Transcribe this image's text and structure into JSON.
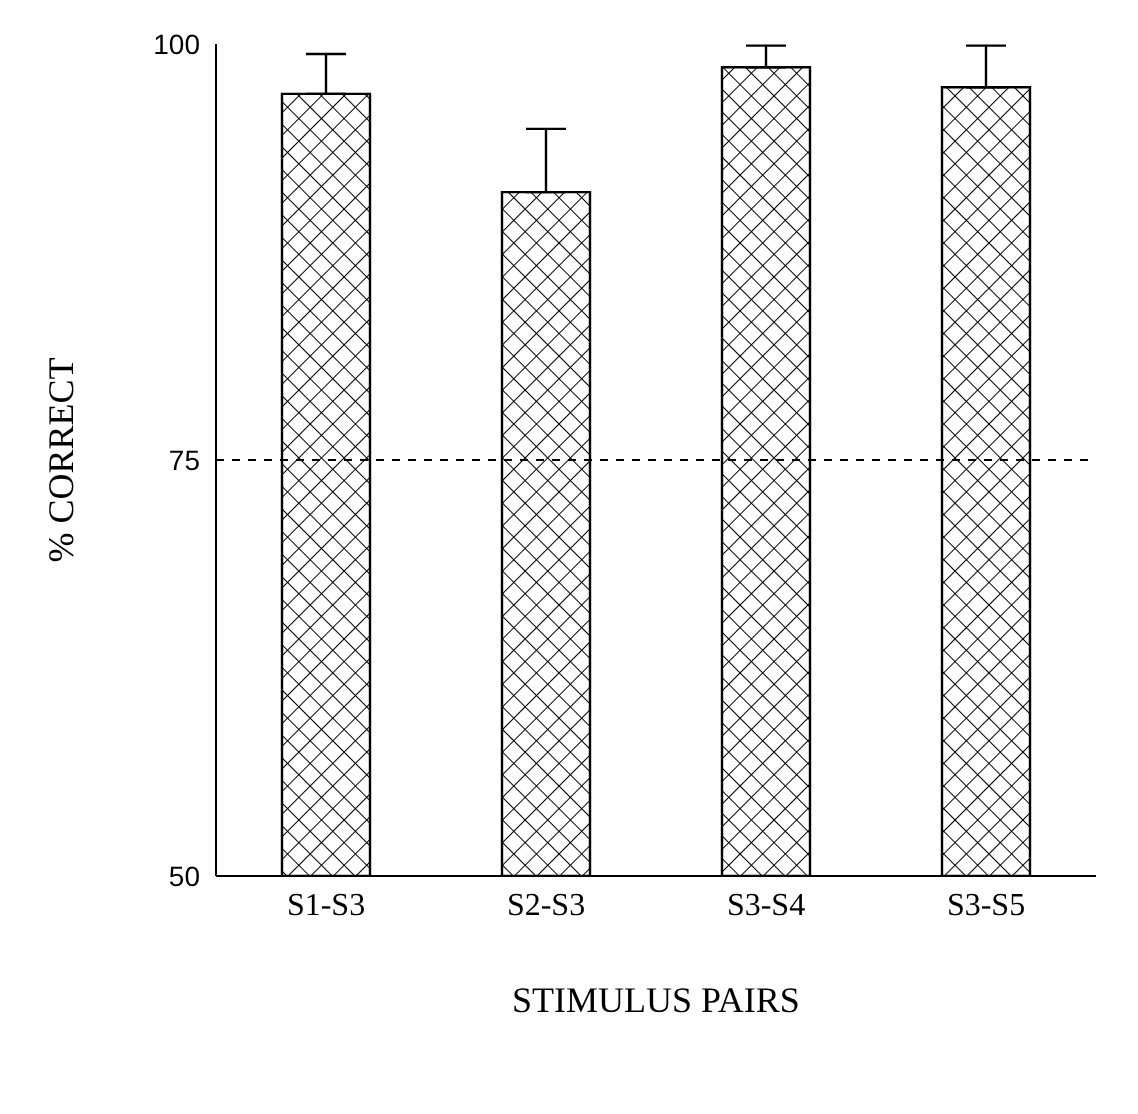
{
  "chart_data": {
    "type": "bar",
    "xlabel": "STIMULUS PAIRS",
    "ylabel": "% CORRECT",
    "categories": [
      "S1-S3",
      "S2-S3",
      "S3-S4",
      "S3-S5"
    ],
    "values": [
      97.0,
      91.1,
      98.6,
      97.4
    ],
    "errors": [
      [
        97.0,
        99.4
      ],
      [
        91.1,
        94.9
      ],
      [
        98.6,
        99.9
      ],
      [
        97.4,
        99.9
      ]
    ],
    "color": "#000000",
    "ylim": [
      50,
      100
    ],
    "yticks": [
      50,
      75,
      100
    ],
    "ref_lines": [
      {
        "axis": "y",
        "value": 75,
        "line_style": "dashed",
        "color": "#000000"
      }
    ]
  }
}
